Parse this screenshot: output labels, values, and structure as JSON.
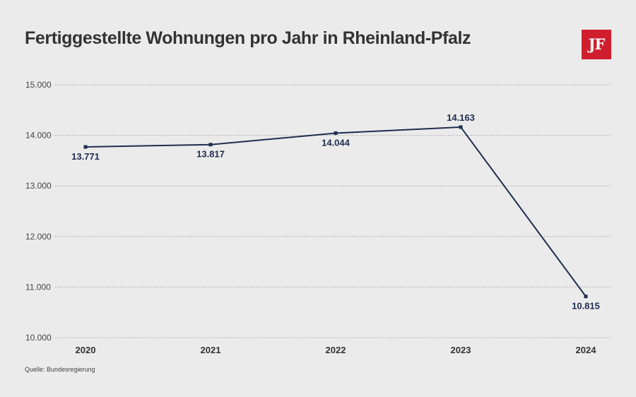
{
  "header": {
    "title": "Fertiggestellte Wohnungen pro Jahr in Rheinland-Pfalz",
    "logo_text": "JF"
  },
  "footer": {
    "source": "Quelle: Bundesregierung"
  },
  "colors": {
    "line": "#1f2d4f",
    "logo_bg": "#cf1f2e",
    "background": "#ebebeb",
    "grid": "#9a9a9a"
  },
  "chart_data": {
    "type": "line",
    "title": "Fertiggestellte Wohnungen pro Jahr in Rheinland-Pfalz",
    "xlabel": "",
    "ylabel": "",
    "categories": [
      "2020",
      "2021",
      "2022",
      "2023",
      "2024"
    ],
    "series": [
      {
        "values": [
          13771,
          13817,
          14044,
          14163,
          10815
        ],
        "labels": [
          "13.771",
          "13.817",
          "14.044",
          "14.163",
          "10.815"
        ],
        "label_position": [
          "below",
          "below",
          "below",
          "above",
          "below"
        ]
      }
    ],
    "ylim": [
      10000,
      15000
    ],
    "yticks": [
      10000,
      11000,
      12000,
      13000,
      14000,
      15000
    ],
    "ytick_labels": [
      "10.000",
      "11.000",
      "12.000",
      "13.000",
      "14.000",
      "15.000"
    ],
    "grid": true,
    "grid_style": "dotted"
  }
}
